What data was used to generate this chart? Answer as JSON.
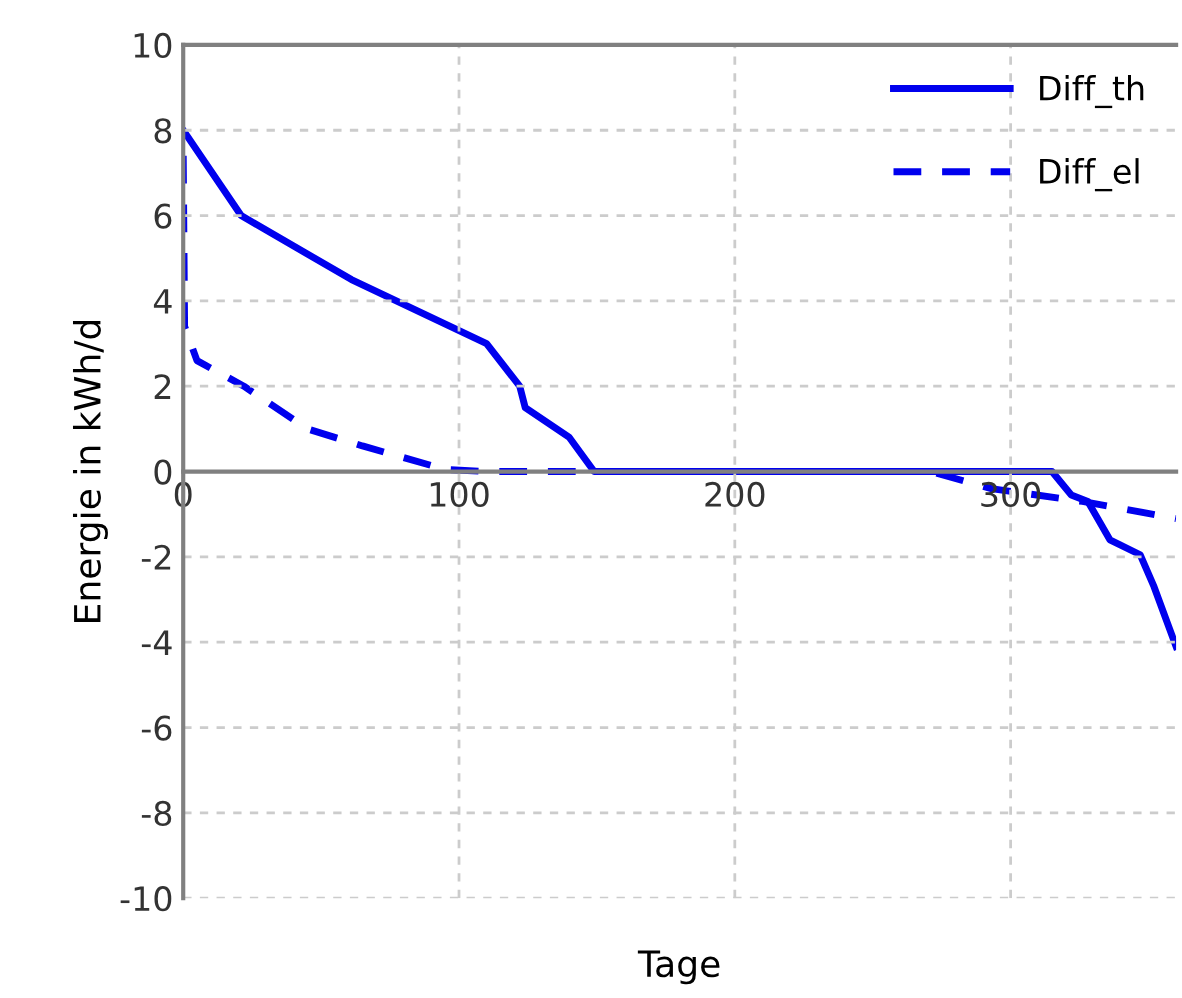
{
  "chart_data": {
    "type": "line",
    "xlabel": "Tage",
    "ylabel": "Energie in kWh/d",
    "xlim": [
      0,
      360
    ],
    "ylim": [
      -10,
      10
    ],
    "xticks": [
      0,
      100,
      200,
      300
    ],
    "yticks": [
      -10,
      -8,
      -6,
      -4,
      -2,
      0,
      2,
      4,
      6,
      8,
      10
    ],
    "grid": true,
    "legend": "top right",
    "series": [
      {
        "name": "Diff_th",
        "color": "#0000ee",
        "line_style": "solid",
        "x": [
          0,
          21,
          61,
          110,
          122,
          124,
          140,
          149,
          315,
          322,
          328,
          336,
          347,
          352,
          360
        ],
        "values": [
          8.0,
          6.0,
          4.5,
          3.0,
          2.0,
          1.5,
          0.8,
          0,
          0,
          -0.55,
          -0.7,
          -1.6,
          -1.95,
          -2.7,
          -4.1
        ]
      },
      {
        "name": "Diff_el",
        "color": "#0000ee",
        "line_style": "dashed",
        "x": [
          0,
          0.5,
          5,
          22,
          45,
          65,
          95,
          110,
          271,
          293,
          326,
          360
        ],
        "values": [
          7.4,
          3.4,
          2.6,
          2.0,
          1.0,
          0.6,
          0.05,
          0,
          0,
          -0.4,
          -0.7,
          -1.1
        ]
      }
    ]
  }
}
